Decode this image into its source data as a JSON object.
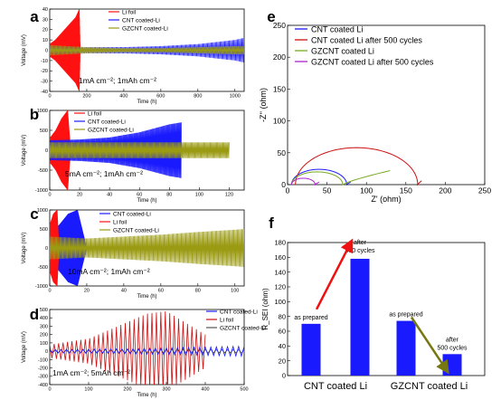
{
  "figure": {
    "colors": {
      "red": "#ff1111",
      "blue": "#1a1aff",
      "olive": "#9a9a13",
      "brown": "#8b7a1a",
      "purple": "#aa22cc",
      "axis": "#000000"
    }
  },
  "chart_data": [
    {
      "id": "a",
      "panel_label": "a",
      "type": "line",
      "xlabel": "Time (h)",
      "ylabel": "Voltage (mV)",
      "xlim": [
        0,
        1050
      ],
      "ylim": [
        -40,
        40
      ],
      "xticks": [
        "0",
        "200",
        "400",
        "600",
        "800",
        "1000"
      ],
      "yticks": [
        "-40",
        "-30",
        "-20",
        "-10",
        "0",
        "10",
        "20",
        "30",
        "40"
      ],
      "annotation": "1mA cm⁻²; 1mAh cm⁻²",
      "legend": [
        "Li foil",
        "CNT coated-Li",
        "GZCNT coated-Li"
      ],
      "series": [
        {
          "name": "Li foil",
          "color": "#ff1111",
          "x": [
            0,
            30,
            60,
            100,
            140,
            160,
            165
          ],
          "amplitude": [
            6,
            10,
            16,
            24,
            32,
            40,
            0
          ]
        },
        {
          "name": "CNT coated-Li",
          "color": "#1a1aff",
          "x": [
            0,
            200,
            400,
            600,
            800,
            1000,
            1050
          ],
          "amplitude": [
            4,
            3,
            3,
            4,
            6,
            10,
            12
          ]
        },
        {
          "name": "GZCNT coated-Li",
          "color": "#9a9a13",
          "x": [
            0,
            200,
            400,
            600,
            800,
            1000,
            1050
          ],
          "amplitude": [
            5,
            3,
            2,
            2,
            3,
            4,
            4
          ]
        }
      ]
    },
    {
      "id": "b",
      "panel_label": "b",
      "type": "line",
      "xlabel": "Time (h)",
      "ylabel": "Voltage (mV)",
      "xlim": [
        0,
        130
      ],
      "ylim": [
        -1000,
        1000
      ],
      "xticks": [
        "0",
        "20",
        "40",
        "60",
        "80",
        "100",
        "120"
      ],
      "yticks": [
        "-1000",
        "-500",
        "0",
        "500",
        "1000"
      ],
      "annotation": "5mA cm⁻²; 1mAh cm⁻²",
      "legend": [
        "Li foil",
        "CNT coated-Li",
        "GZCNT coated-Li"
      ],
      "series": [
        {
          "name": "Li foil",
          "color": "#ff1111",
          "x": [
            0,
            4,
            8,
            12,
            14
          ],
          "amplitude": [
            300,
            500,
            800,
            1000,
            0
          ]
        },
        {
          "name": "CNT coated-Li",
          "color": "#1a1aff",
          "x": [
            0,
            20,
            40,
            60,
            80,
            88
          ],
          "amplitude": [
            250,
            270,
            320,
            450,
            650,
            700
          ]
        },
        {
          "name": "GZCNT coated-Li",
          "color": "#9a9a13",
          "x": [
            0,
            20,
            40,
            60,
            80,
            100,
            120
          ],
          "amplitude": [
            200,
            200,
            200,
            200,
            200,
            200,
            200
          ]
        }
      ]
    },
    {
      "id": "c",
      "panel_label": "c",
      "type": "line",
      "xlabel": "Time (h)",
      "ylabel": "Voltage (mV)",
      "xlim": [
        0,
        105
      ],
      "ylim": [
        -1000,
        1000
      ],
      "xticks": [
        "0",
        "20",
        "40",
        "60",
        "80",
        "100"
      ],
      "yticks": [
        "-1000",
        "-500",
        "0",
        "500",
        "1000"
      ],
      "annotation": "10mA cm⁻²; 1mAh cm⁻²",
      "legend": [
        "CNT coated-Li",
        "Li foil",
        "GZCNT coated-Li"
      ],
      "series": [
        {
          "name": "CNT coated-Li",
          "color": "#1a1aff",
          "x": [
            0,
            5,
            10,
            15,
            20
          ],
          "amplitude": [
            400,
            600,
            900,
            1000,
            0
          ]
        },
        {
          "name": "Li foil",
          "color": "#ff1111",
          "x": [
            0,
            2,
            4,
            5
          ],
          "amplitude": [
            600,
            900,
            1000,
            0
          ]
        },
        {
          "name": "GZCNT coated-Li",
          "color": "#9a9a13",
          "x": [
            0,
            20,
            40,
            60,
            80,
            100,
            105
          ],
          "amplitude": [
            300,
            250,
            300,
            350,
            420,
            480,
            500
          ]
        }
      ]
    },
    {
      "id": "d",
      "panel_label": "d",
      "type": "line",
      "xlabel": "Time (h)",
      "ylabel": "Voltage (mV)",
      "xlim": [
        0,
        500
      ],
      "ylim": [
        -400,
        500
      ],
      "xticks": [
        "0",
        "100",
        "200",
        "300",
        "400",
        "500"
      ],
      "yticks": [
        "-400",
        "-300",
        "-200",
        "-100",
        "0",
        "100",
        "200",
        "300",
        "400",
        "500"
      ],
      "annotation": "1mA cm⁻²; 5mAh cm⁻²",
      "legend": [
        "CNT coated-Li",
        "Li foil",
        "GZCNT coated-Li"
      ],
      "series": [
        {
          "name": "Li foil",
          "color": "#cc1111",
          "x": [
            0,
            100,
            200,
            250,
            300,
            400
          ],
          "amplitude": [
            80,
            150,
            350,
            450,
            480,
            200
          ]
        },
        {
          "name": "CNT coated-Li",
          "color": "#1a1aff",
          "x": [
            0,
            100,
            200,
            300,
            400,
            500
          ],
          "amplitude": [
            20,
            25,
            30,
            40,
            50,
            60
          ]
        },
        {
          "name": "GZCNT coated-Li",
          "color": "#555555",
          "x": [
            0,
            100,
            200,
            300,
            400,
            500
          ],
          "amplitude": [
            20,
            20,
            20,
            20,
            20,
            20
          ]
        }
      ]
    },
    {
      "id": "e",
      "panel_label": "e",
      "type": "line",
      "xlabel": "Z' (ohm)",
      "ylabel": "-Z'' (ohm)",
      "xlim": [
        0,
        250
      ],
      "ylim": [
        0,
        250
      ],
      "xticks": [
        "0",
        "50",
        "100",
        "150",
        "200",
        "250"
      ],
      "yticks": [
        "0",
        "50",
        "100",
        "150",
        "200",
        "250"
      ],
      "legend": [
        "CNT coated Li",
        "CNT coated Li after 500 cycles",
        "GZCNT coated Li",
        "GZCNT coated Li after 500 cycles"
      ],
      "series": [
        {
          "name": "CNT coated Li",
          "color": "#1a1aff",
          "x": [
            5,
            40,
            75,
            80
          ],
          "y": [
            0,
            24,
            0,
            4
          ]
        },
        {
          "name": "CNT coated Li after 500 cycles",
          "color": "#cc1111",
          "x": [
            10,
            90,
            165,
            170
          ],
          "y": [
            0,
            58,
            0,
            6
          ]
        },
        {
          "name": "GZCNT coated Li",
          "color": "#77aa22",
          "x": [
            5,
            37,
            70,
            130
          ],
          "y": [
            0,
            20,
            0,
            22
          ]
        },
        {
          "name": "GZCNT coated Li after 500 cycles",
          "color": "#aa22cc",
          "x": [
            5,
            20,
            35,
            40
          ],
          "y": [
            0,
            10,
            0,
            4
          ]
        }
      ]
    },
    {
      "id": "f",
      "panel_label": "f",
      "type": "bar",
      "ylabel": "R_SEI (ohm)",
      "ylim": [
        0,
        180
      ],
      "yticks": [
        "0",
        "20",
        "40",
        "60",
        "80",
        "100",
        "120",
        "140",
        "160",
        "180"
      ],
      "categories": [
        "CNT coated Li",
        "GZCNT coated Li"
      ],
      "series": [
        {
          "name": "as prepared",
          "values": [
            70,
            74
          ]
        },
        {
          "name": "after 500 cycles",
          "values": [
            158,
            29
          ]
        }
      ],
      "bar_labels": [
        "as prepared",
        "after 500 cycles",
        "as prepared",
        "after 500 cycles"
      ],
      "bar_color": "#1a1aff"
    }
  ]
}
